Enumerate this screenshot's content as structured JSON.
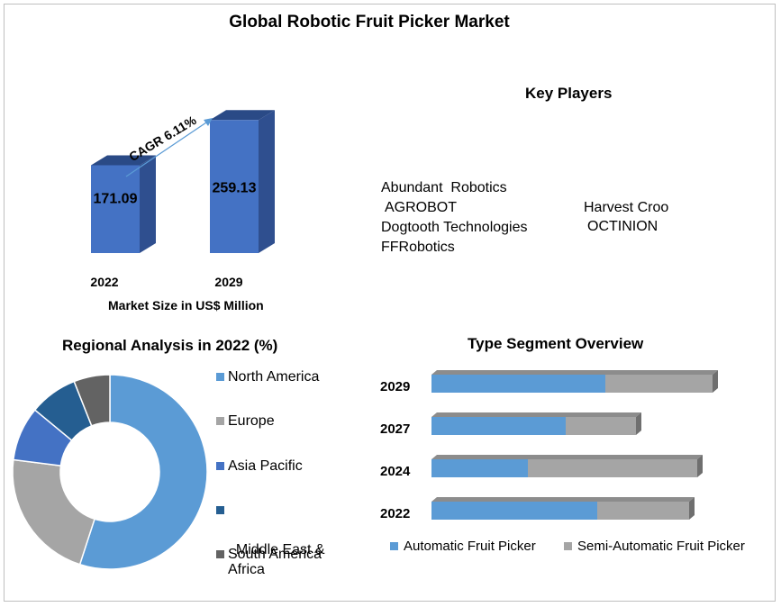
{
  "title": "Global Robotic Fruit Picker Market",
  "market_size": {
    "caption": "Market Size in US$ Million",
    "cagr_label": "CAGR 6.11%"
  },
  "key_players": {
    "heading": "Key Players",
    "names": [
      "Abundant  Robotics",
      "AGROBOT",
      "Dogtooth Technologies",
      "FFRobotics",
      "Harvest Croo",
      "OCTINION"
    ]
  },
  "regional": {
    "heading": "Regional Analysis in 2022 (%)",
    "legend": [
      "North America",
      "Europe",
      "Asia Pacific",
      "Middle East &\nAfrica",
      "South America"
    ]
  },
  "type_segment": {
    "heading": "Type Segment Overview"
  },
  "colors": {
    "bar_front": "#4472c4",
    "bar_side": "#2f4f8f",
    "bar_top": "#2a4a86",
    "north_america": "#5b9bd5",
    "europe": "#a5a5a5",
    "asia_pacific": "#4472c4",
    "middle_east_africa": "#255e91",
    "south_america": "#636363",
    "automatic": "#5b9bd5",
    "semi_automatic": "#a5a5a5"
  },
  "chart_data": [
    {
      "type": "bar",
      "categories": [
        "2022",
        "2029"
      ],
      "values": [
        171.09,
        259.13
      ],
      "title": "",
      "xlabel": "Market Size in US$ Million",
      "ylabel": ""
    },
    {
      "type": "pie",
      "title": "Regional Analysis in 2022 (%)",
      "labels": [
        "North America",
        "Europe",
        "Asia Pacific",
        "Middle East & Africa",
        "South America"
      ],
      "values": [
        55,
        22,
        9,
        8,
        6
      ]
    },
    {
      "type": "bar",
      "orientation": "horizontal",
      "stacked": true,
      "title": "Type Segment Overview",
      "categories": [
        "2029",
        "2027",
        "2024",
        "2022"
      ],
      "series": [
        {
          "name": "Automatic Fruit Picker",
          "values": [
            193,
            149,
            107,
            184
          ]
        },
        {
          "name": "Semi-Automatic Fruit Picker",
          "values": [
            119,
            78,
            188,
            102
          ]
        }
      ],
      "legend": "bottom"
    }
  ]
}
